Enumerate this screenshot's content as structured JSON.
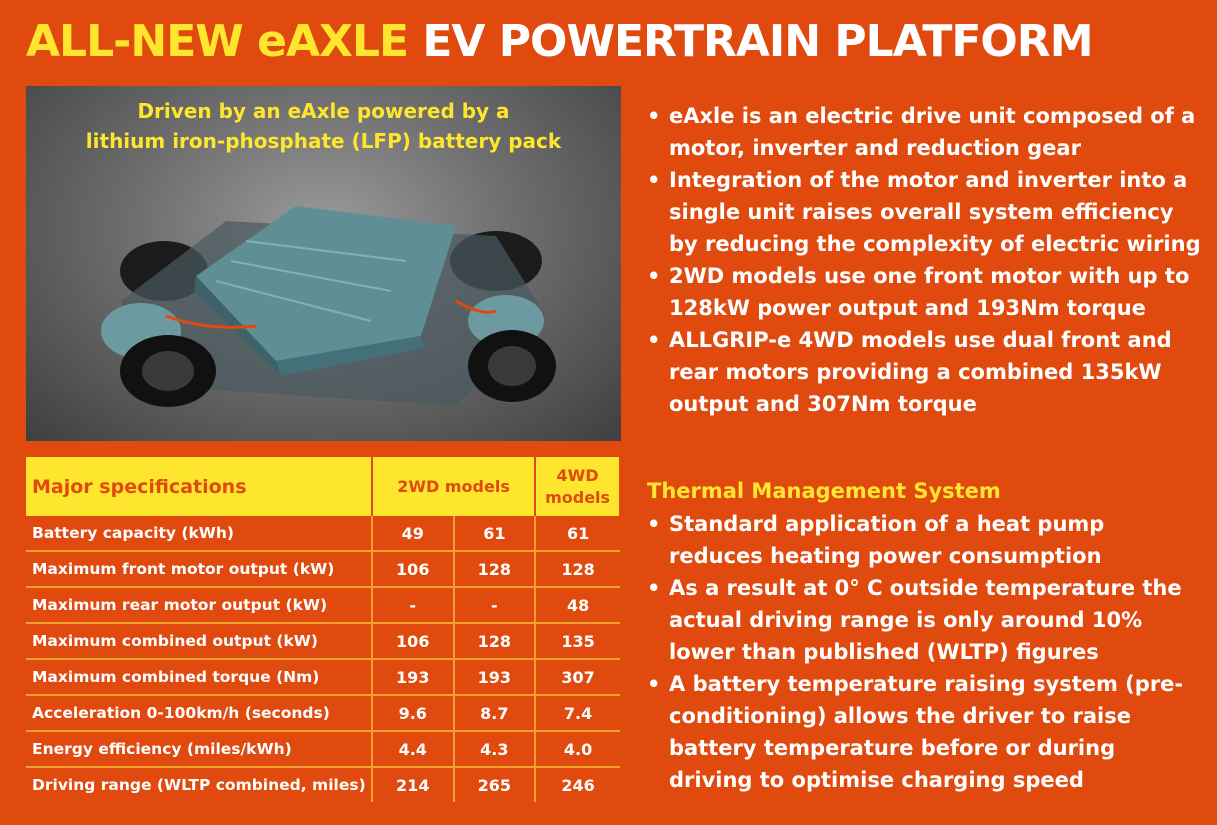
{
  "title": {
    "highlight": "ALL-NEW eAXLE",
    "rest": "EV POWERTRAIN PLATFORM"
  },
  "image": {
    "caption_line1": "Driven by an eAxle powered by a",
    "caption_line2": "lithium iron-phosphate (LFP) battery pack"
  },
  "specs": {
    "header": {
      "label": "Major specifications",
      "group_2wd": "2WD models",
      "group_4wd": "4WD models"
    },
    "rows": [
      {
        "label": "Battery capacity (kWh)",
        "v1": "49",
        "v2": "61",
        "v3": "61"
      },
      {
        "label": "Maximum front motor output (kW)",
        "v1": "106",
        "v2": "128",
        "v3": "128"
      },
      {
        "label": "Maximum rear motor output (kW)",
        "v1": "-",
        "v2": "-",
        "v3": "48"
      },
      {
        "label": "Maximum combined output (kW)",
        "v1": "106",
        "v2": "128",
        "v3": "135"
      },
      {
        "label": "Maximum combined torque (Nm)",
        "v1": "193",
        "v2": "193",
        "v3": "307"
      },
      {
        "label": "Acceleration 0-100km/h (seconds)",
        "v1": "9.6",
        "v2": "8.7",
        "v3": "7.4"
      },
      {
        "label": "Energy efficiency (miles/kWh)",
        "v1": "4.4",
        "v2": "4.3",
        "v3": "4.0"
      },
      {
        "label": "Driving range (WLTP combined, miles)",
        "v1": "214",
        "v2": "265",
        "v3": "246"
      }
    ]
  },
  "bullets": [
    "eAxle is an electric drive unit composed of a motor, inverter and reduction gear",
    "Integration of the motor and inverter into a single unit raises overall system efficiency by reducing the complexity of electric wiring",
    "2WD models use one front motor with up to 128kW power output and 193Nm torque",
    "ALLGRIP-e 4WD models use dual front and rear motors providing a combined 135kW output and 307Nm torque"
  ],
  "thermal": {
    "heading": "Thermal Management System",
    "bullets": [
      "Standard application of a heat pump reduces heating power consumption",
      "As a result at 0° C outside temperature the actual driving range is only around 10% lower than published (WLTP) figures",
      "A battery temperature raising system (pre-conditioning) allows the driver to raise battery temperature before or during driving to optimise charging speed"
    ]
  },
  "colors": {
    "background": "#e04a0f",
    "accent": "#ffe62e",
    "text": "#ffffff"
  }
}
